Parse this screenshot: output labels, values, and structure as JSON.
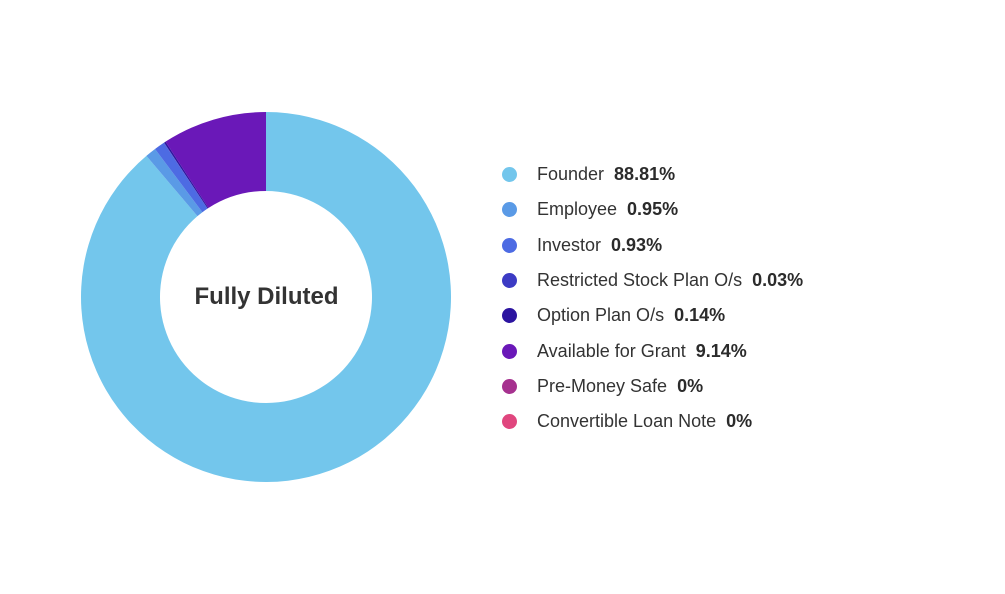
{
  "chart_data": {
    "type": "pie",
    "title": "Fully Diluted",
    "legend_position": "right",
    "series": [
      {
        "name": "Founder",
        "value": 88.81,
        "label": "88.81%",
        "color": "#73C6EC"
      },
      {
        "name": "Employee",
        "value": 0.95,
        "label": "0.95%",
        "color": "#5A9AE6"
      },
      {
        "name": "Investor",
        "value": 0.93,
        "label": "0.93%",
        "color": "#4D6BE3"
      },
      {
        "name": "Restricted Stock Plan O/s",
        "value": 0.03,
        "label": "0.03%",
        "color": "#3C3BC4"
      },
      {
        "name": "Option Plan O/s",
        "value": 0.14,
        "label": "0.14%",
        "color": "#2C14A0"
      },
      {
        "name": "Available for Grant",
        "value": 9.14,
        "label": "9.14%",
        "color": "#6A18B8"
      },
      {
        "name": "Pre-Money Safe",
        "value": 0,
        "label": "0%",
        "color": "#A6318F"
      },
      {
        "name": "Convertible Loan Note",
        "value": 0,
        "label": "0%",
        "color": "#E0467E"
      }
    ]
  }
}
